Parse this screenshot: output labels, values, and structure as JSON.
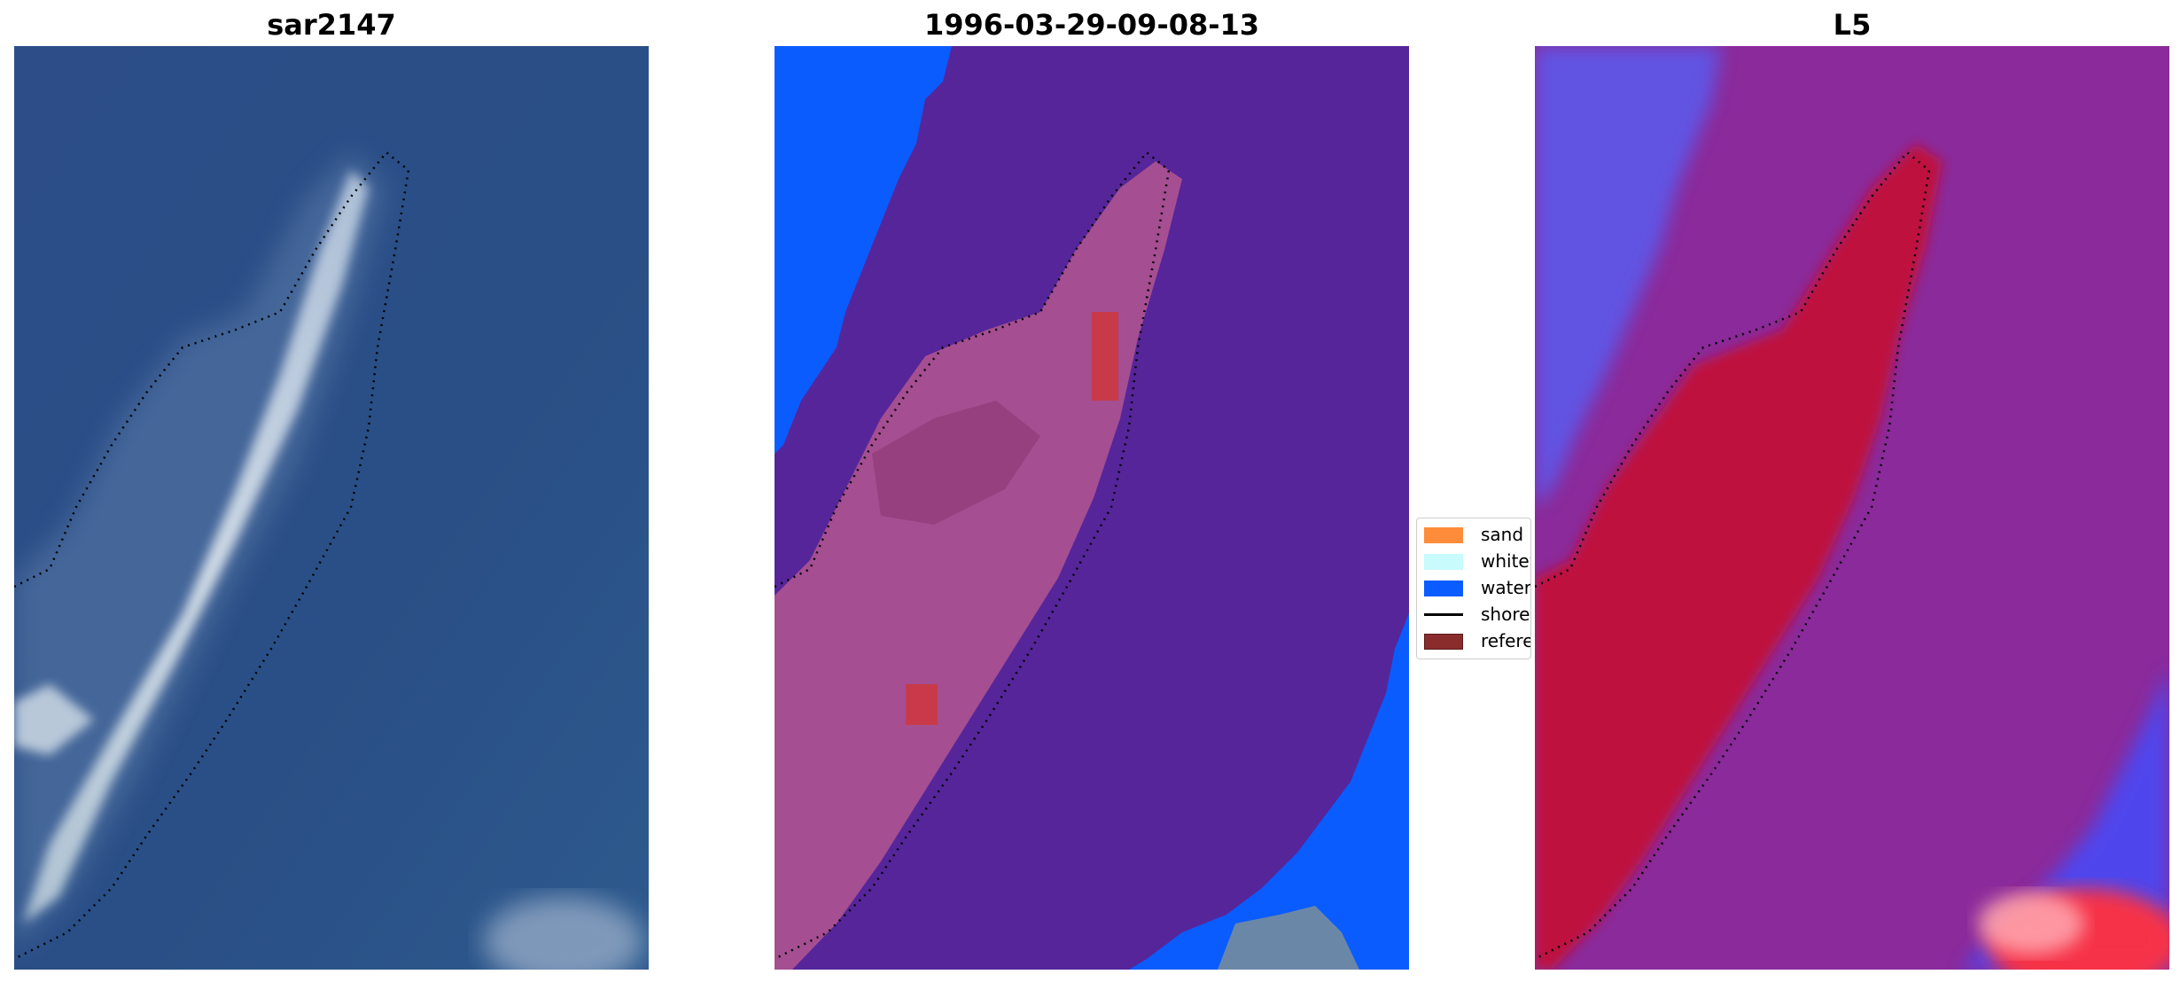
{
  "panels": {
    "left_title": "sar2147",
    "middle_title": "1996-03-29-09-08-13",
    "right_title": "L5"
  },
  "legend": {
    "items": [
      {
        "label": "sand",
        "color": "#ff8c3a",
        "icon": "swatch"
      },
      {
        "label": "whitew",
        "color": "#c8fbfb",
        "icon": "swatch"
      },
      {
        "label": "water",
        "color": "#0a5cff",
        "icon": "swatch"
      },
      {
        "label": "shorel",
        "color": "#000000",
        "icon": "line"
      },
      {
        "label": "referer",
        "color": "#8b2c2c",
        "icon": "swatch"
      }
    ]
  },
  "colors": {
    "rgb_water": "#2b4f86",
    "class_water": "#0a5cff",
    "class_other": "#56259a",
    "index_high": "#c8102e",
    "index_mid": "#8b2a9a",
    "index_low": "#5a5cf0"
  }
}
